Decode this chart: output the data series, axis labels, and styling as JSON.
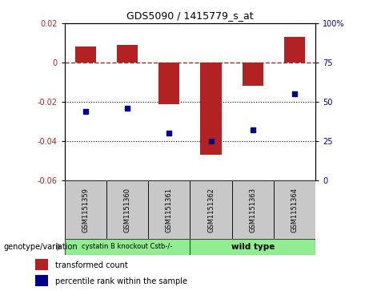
{
  "title": "GDS5090 / 1415779_s_at",
  "samples": [
    "GSM1151359",
    "GSM1151360",
    "GSM1151361",
    "GSM1151362",
    "GSM1151363",
    "GSM1151364"
  ],
  "red_bars": [
    0.008,
    0.009,
    -0.021,
    -0.047,
    -0.012,
    0.013
  ],
  "blue_dots_pct": [
    44,
    46,
    30,
    25,
    32,
    55
  ],
  "ylim_left": [
    -0.06,
    0.02
  ],
  "ylim_right": [
    0,
    100
  ],
  "yticks_left": [
    0.02,
    0.0,
    -0.02,
    -0.04,
    -0.06
  ],
  "yticks_right": [
    100,
    75,
    50,
    25,
    0
  ],
  "bar_color": "#b22222",
  "dot_color": "#00008b",
  "dashed_color": "#b22222",
  "group1_label": "cystatin B knockout Cstb-/-",
  "group2_label": "wild type",
  "group1_color": "#90ee90",
  "group2_color": "#90ee90",
  "sample_box_color": "#c8c8c8",
  "legend_red": "transformed count",
  "legend_blue": "percentile rank within the sample",
  "genotype_label": "genotype/variation"
}
